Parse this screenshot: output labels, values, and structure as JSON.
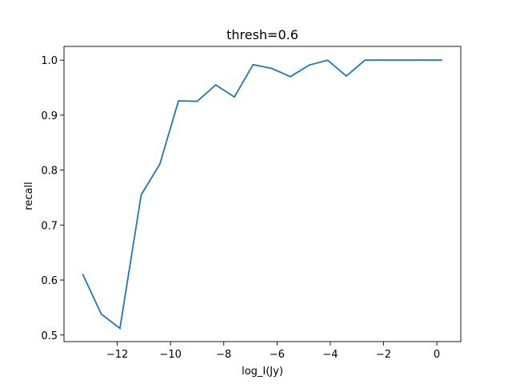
{
  "chart_data": {
    "type": "line",
    "title": "thresh=0.6",
    "xlabel": "log_I(Jy)",
    "ylabel": "recall",
    "xlim": [
      -14.0,
      0.9
    ],
    "ylim": [
      0.488,
      1.025
    ],
    "xticks": [
      -12,
      -10,
      -8,
      -6,
      -4,
      -2,
      0
    ],
    "xtick_labels": [
      "−12",
      "−10",
      "−8",
      "−6",
      "−4",
      "−2",
      "0"
    ],
    "yticks": [
      0.5,
      0.6,
      0.7,
      0.8,
      0.9,
      1.0
    ],
    "ytick_labels": [
      "0.5",
      "0.6",
      "0.7",
      "0.8",
      "0.9",
      "1.0"
    ],
    "grid": false,
    "color": "#1f77b4",
    "series": [
      {
        "x": [
          -13.3,
          -12.6,
          -11.9,
          -11.1,
          -10.4,
          -9.7,
          -9.0,
          -8.3,
          -7.6,
          -6.9,
          -6.2,
          -5.5,
          -4.8,
          -4.1,
          -3.4,
          -2.7,
          -2.0,
          -1.3,
          -0.5,
          0.2
        ],
        "y": [
          0.611,
          0.538,
          0.512,
          0.755,
          0.811,
          0.926,
          0.925,
          0.955,
          0.933,
          0.992,
          0.985,
          0.97,
          0.991,
          1.0,
          0.971,
          1.0,
          1.0,
          1.0,
          1.0,
          1.0
        ]
      }
    ]
  }
}
